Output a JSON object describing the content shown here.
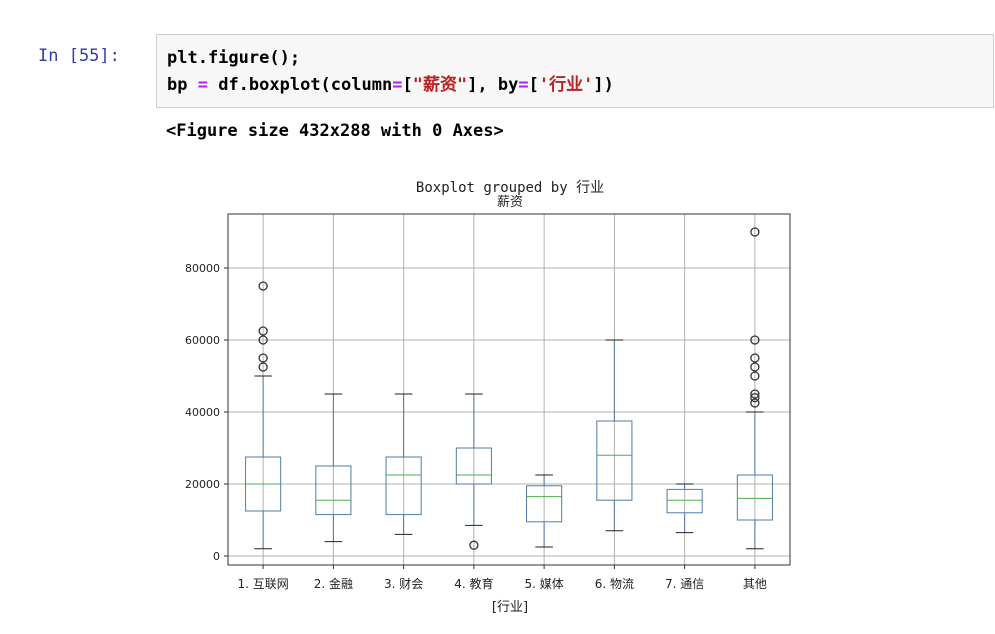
{
  "cell": {
    "prompt": "In [55]:",
    "line1": {
      "plain": "plt.figure();"
    },
    "line2": {
      "p1": "bp ",
      "eq1": "=",
      "p2": " df.boxplot(column",
      "eq2": "=",
      "p3": "[",
      "s1": "\"薪资\"",
      "p4": "], by",
      "eq3": "=",
      "p5": "[",
      "s2": "'行业'",
      "p6": "])"
    }
  },
  "output_text": "<Figure size 432x288 with 0 Axes>",
  "chart_data": {
    "type": "box",
    "title": "Boxplot grouped by 行业",
    "subtitle": "薪资",
    "xlabel": "[行业]",
    "ylabel": "",
    "ylim": [
      -2500,
      95000
    ],
    "yticks": [
      0,
      20000,
      40000,
      60000,
      80000
    ],
    "grid": true,
    "colors": {
      "box": "#4f7ba7",
      "median": "#4caf50",
      "flier": "#333333",
      "grid": "#b0b0b0"
    },
    "categories": [
      "1. 互联网",
      "2. 金融",
      "3. 财会",
      "4. 教育",
      "5. 媒体",
      "6. 物流",
      "7. 通信",
      "其他"
    ],
    "boxes": [
      {
        "whislo": 2000,
        "q1": 12500,
        "med": 20000,
        "q3": 27500,
        "whishi": 50000,
        "fliers": [
          52500,
          55000,
          60000,
          62500,
          75000
        ]
      },
      {
        "whislo": 4000,
        "q1": 11500,
        "med": 15500,
        "q3": 25000,
        "whishi": 45000,
        "fliers": []
      },
      {
        "whislo": 6000,
        "q1": 11500,
        "med": 22500,
        "q3": 27500,
        "whishi": 45000,
        "fliers": []
      },
      {
        "whislo": 8500,
        "q1": 20000,
        "med": 22500,
        "q3": 30000,
        "whishi": 45000,
        "fliers": [
          3000
        ]
      },
      {
        "whislo": 2500,
        "q1": 9500,
        "med": 16500,
        "q3": 19500,
        "whishi": 22500,
        "fliers": []
      },
      {
        "whislo": 7000,
        "q1": 15500,
        "med": 28000,
        "q3": 37500,
        "whishi": 60000,
        "fliers": []
      },
      {
        "whislo": 6500,
        "q1": 12000,
        "med": 15500,
        "q3": 18500,
        "whishi": 20000,
        "fliers": []
      },
      {
        "whislo": 2000,
        "q1": 10000,
        "med": 16000,
        "q3": 22500,
        "whishi": 40000,
        "fliers": [
          42500,
          44000,
          45000,
          50000,
          52500,
          55000,
          60000,
          90000
        ]
      }
    ]
  }
}
